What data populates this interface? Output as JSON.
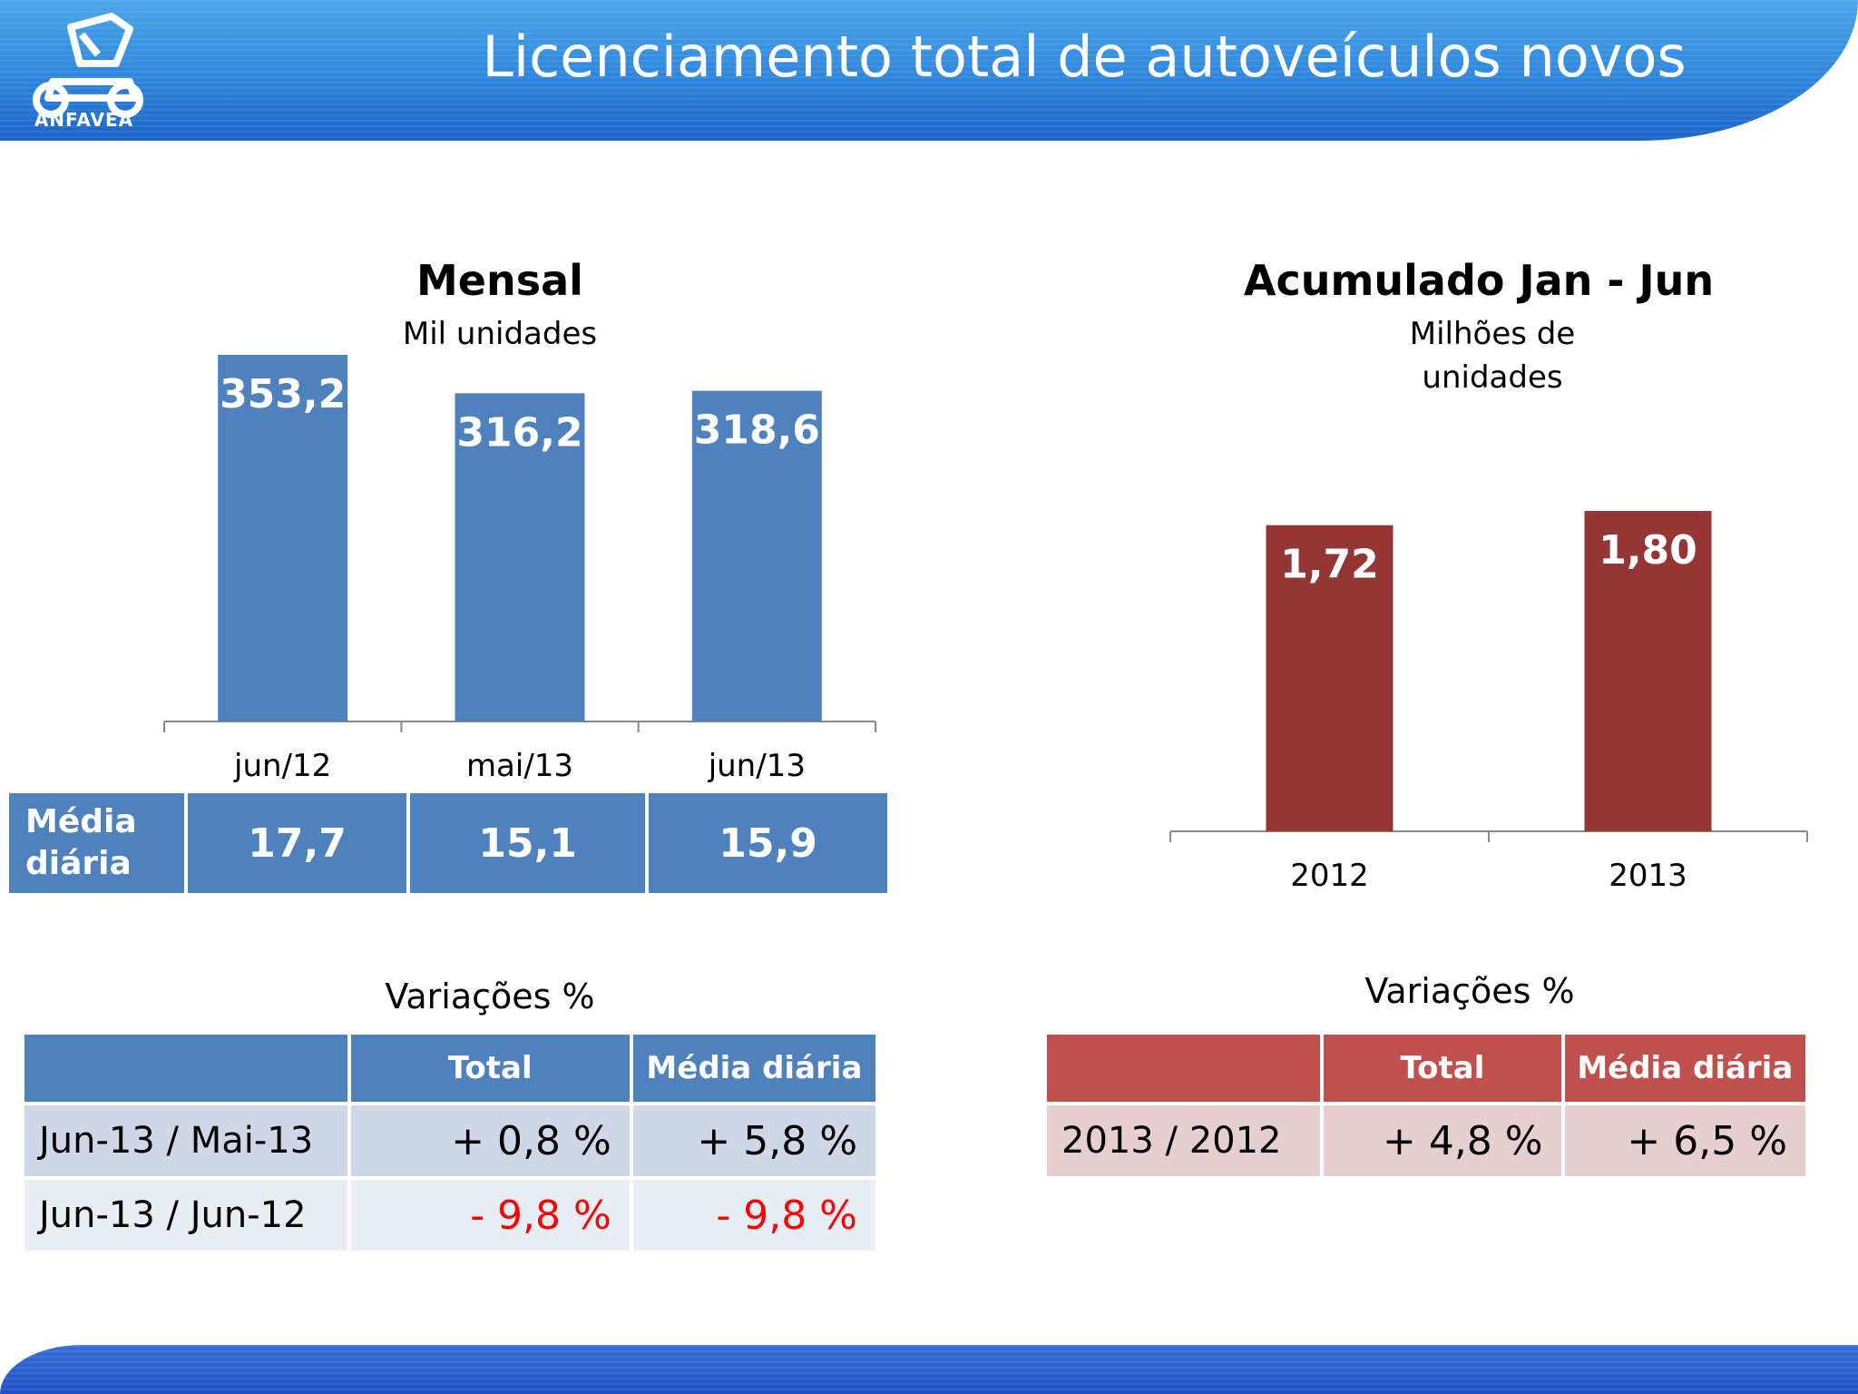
{
  "header": {
    "title": "Licenciamento total de autoveículos novos",
    "logo_text": "ANFAVEA"
  },
  "colors": {
    "blue_bar": "#4f81bd",
    "red_bar": "#943634",
    "negative": "#ff0000"
  },
  "chart_data": [
    {
      "type": "bar",
      "title": "Mensal",
      "subtitle": "Mil unidades",
      "categories": [
        "jun/12",
        "mai/13",
        "jun/13"
      ],
      "values": [
        353.2,
        316.2,
        318.6
      ],
      "value_labels": [
        "353,2",
        "316,2",
        "318,6"
      ],
      "ylim": [
        0,
        353.2
      ],
      "grid": false,
      "legend": "none"
    },
    {
      "type": "bar",
      "title": "Acumulado Jan - Jun",
      "subtitle_lines": [
        "Milhões de",
        "unidades"
      ],
      "categories": [
        "2012",
        "2013"
      ],
      "values": [
        1.72,
        1.8
      ],
      "value_labels": [
        "1,72",
        "1,80"
      ],
      "ylim": [
        0,
        1.8
      ],
      "grid": false,
      "legend": "none"
    }
  ],
  "daily_avg": {
    "label_line1": "Média",
    "label_line2": "diária",
    "values": [
      "17,7",
      "15,1",
      "15,9"
    ]
  },
  "variations_left": {
    "title": "Variações %",
    "headers": [
      "",
      "Total",
      "Média diária"
    ],
    "rows": [
      {
        "label": "Jun-13 / Mai-13",
        "total": "+ 0,8 %",
        "daily": "+ 5,8 %"
      },
      {
        "label": "Jun-13 / Jun-12",
        "total": "- 9,8 %",
        "daily": "- 9,8 %"
      }
    ]
  },
  "variations_right": {
    "title": "Variações %",
    "headers": [
      "",
      "Total",
      "Média diária"
    ],
    "rows": [
      {
        "label": "2013 / 2012",
        "total": "+ 4,8 %",
        "daily": "+ 6,5 %"
      }
    ]
  }
}
